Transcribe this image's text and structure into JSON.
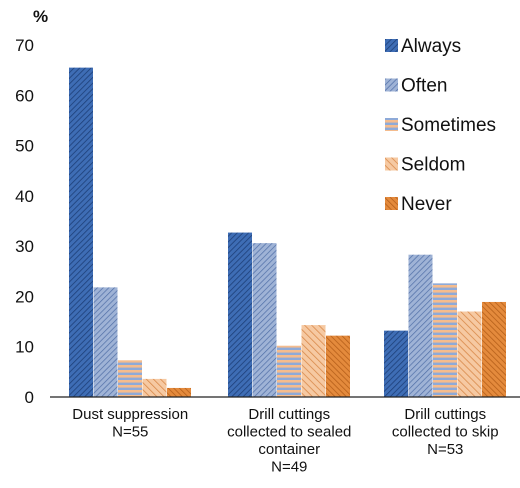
{
  "chart_data": {
    "type": "bar",
    "ylabel": "%",
    "ylim": [
      0,
      70
    ],
    "yticks": [
      0,
      10,
      20,
      30,
      40,
      50,
      60,
      70
    ],
    "grid": false,
    "legend_position": "top-right",
    "categories": [
      [
        "Dust suppression",
        "N=55"
      ],
      [
        "Drill cuttings",
        "collected to sealed",
        "container",
        "N=49"
      ],
      [
        "Drill cuttings",
        "collected to skip",
        "N=53"
      ]
    ],
    "series": [
      {
        "name": "Always",
        "values": [
          65.5,
          32.7,
          13.2
        ],
        "color": "#3e6db5",
        "pattern": "diag-dark"
      },
      {
        "name": "Often",
        "values": [
          21.8,
          30.6,
          28.3
        ],
        "color": "#8ea4cc",
        "pattern": "diag-light"
      },
      {
        "name": "Sometimes",
        "values": [
          7.3,
          10.2,
          22.6
        ],
        "color": "#e8b48c",
        "pattern": "horizontal"
      },
      {
        "name": "Seldom",
        "values": [
          3.6,
          14.3,
          17.0
        ],
        "color": "#f0b080",
        "pattern": "diag-orange-light"
      },
      {
        "name": "Never",
        "values": [
          1.8,
          12.2,
          18.9
        ],
        "color": "#e48a3c",
        "pattern": "diag-orange-dark"
      }
    ]
  }
}
